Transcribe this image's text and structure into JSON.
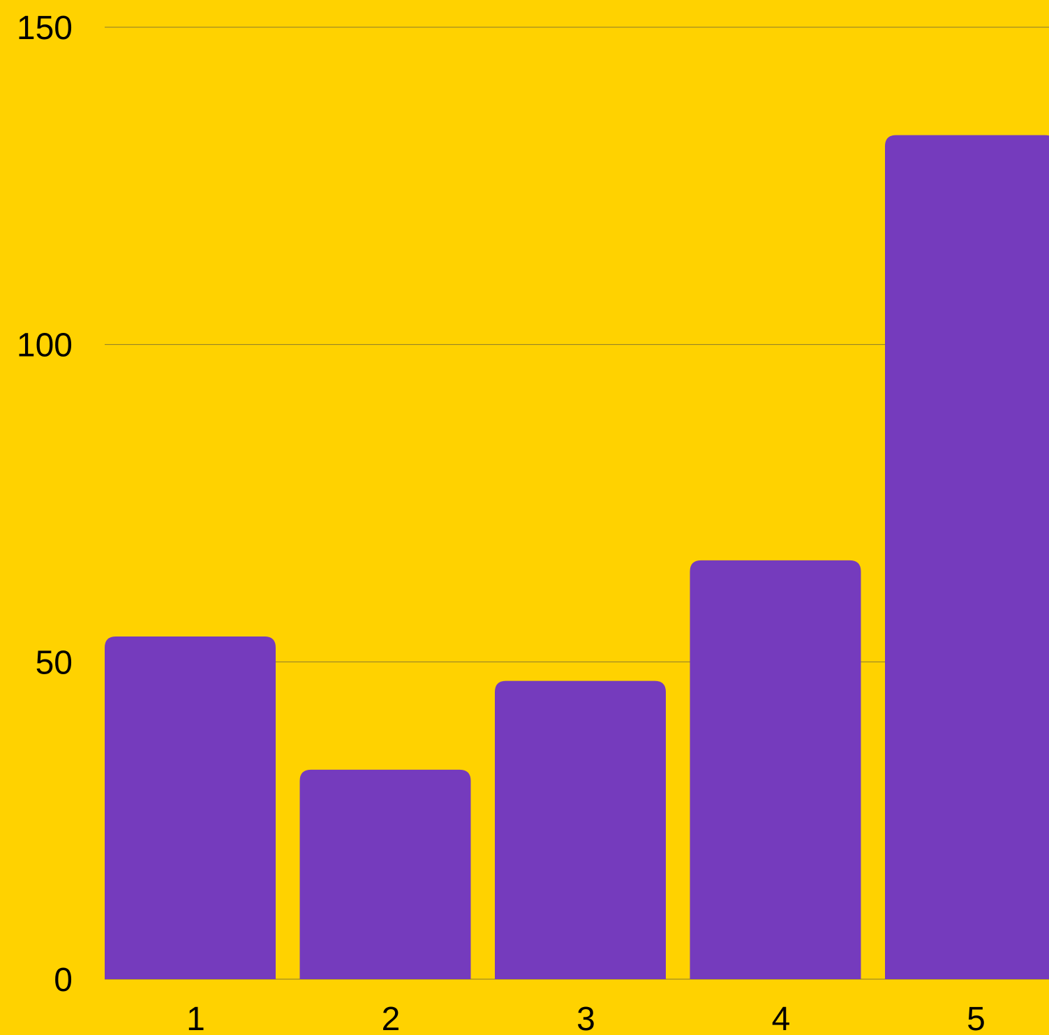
{
  "chart_data": {
    "type": "bar",
    "categories": [
      "1",
      "2",
      "3",
      "4",
      "5"
    ],
    "values": [
      54,
      33,
      47,
      66,
      133
    ],
    "ylim": [
      0,
      150
    ],
    "yticks": [
      "0",
      "50",
      "100",
      "150"
    ],
    "title": "",
    "xlabel": "",
    "ylabel": "",
    "grid": true,
    "legend": "none"
  },
  "colors": {
    "background": "#FFD200",
    "bar": "#753BBD",
    "grid": "#8A7A2E",
    "text": "#000000"
  }
}
